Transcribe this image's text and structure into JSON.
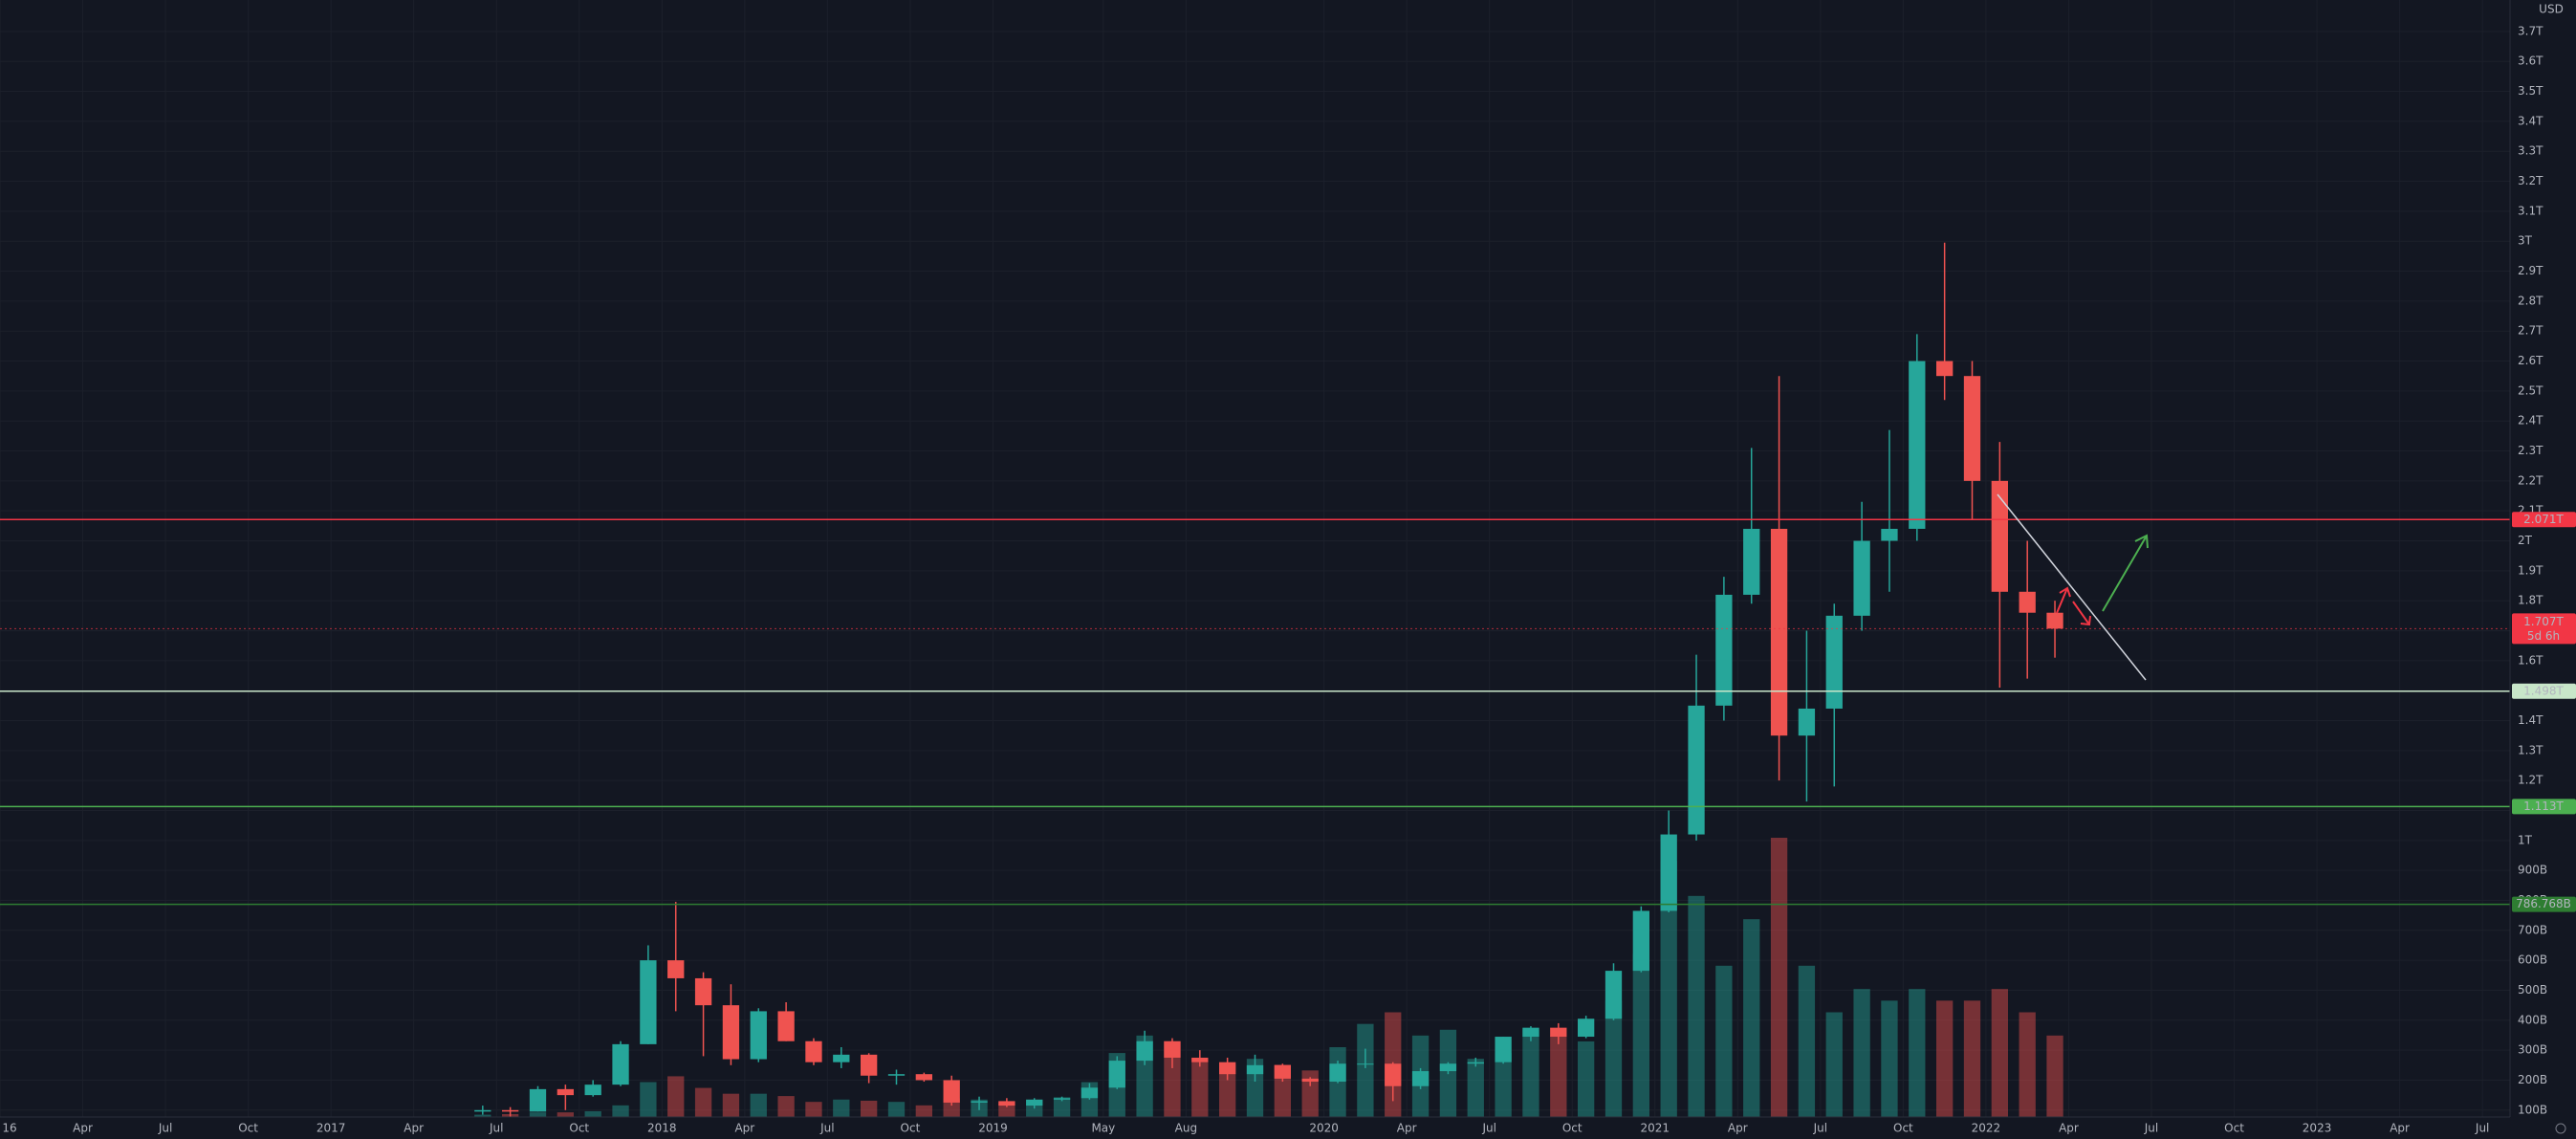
{
  "chart_data": {
    "type": "candlestick",
    "currency": "USD",
    "x": [
      "2017-06",
      "2017-07",
      "2017-08",
      "2017-09",
      "2017-10",
      "2017-11",
      "2017-12",
      "2018-01",
      "2018-02",
      "2018-03",
      "2018-04",
      "2018-05",
      "2018-06",
      "2018-07",
      "2018-08",
      "2018-09",
      "2018-10",
      "2018-11",
      "2018-12",
      "2019-01",
      "2019-02",
      "2019-03",
      "2019-04",
      "2019-05",
      "2019-06",
      "2019-07",
      "2019-08",
      "2019-09",
      "2019-10",
      "2019-11",
      "2019-12",
      "2020-01",
      "2020-02",
      "2020-03",
      "2020-04",
      "2020-05",
      "2020-06",
      "2020-07",
      "2020-08",
      "2020-09",
      "2020-10",
      "2020-11",
      "2020-12",
      "2021-01",
      "2021-02",
      "2021-03",
      "2021-04",
      "2021-05",
      "2021-06",
      "2021-07",
      "2021-08",
      "2021-09",
      "2021-10",
      "2021-11",
      "2021-12",
      "2022-01",
      "2022-02",
      "2022-03"
    ],
    "open": [
      95,
      100,
      95,
      170,
      150,
      185,
      320,
      600,
      540,
      450,
      270,
      430,
      330,
      260,
      285,
      215,
      220,
      200,
      125,
      130,
      115,
      135,
      140,
      175,
      265,
      330,
      275,
      260,
      220,
      250,
      205,
      195,
      255,
      255,
      180,
      230,
      255,
      260,
      345,
      375,
      345,
      405,
      565,
      765,
      1020,
      1450,
      1820,
      2040,
      1350,
      1440,
      1750,
      2000,
      2040,
      2600,
      2550,
      2200,
      1830,
      1760
    ],
    "high": [
      115,
      110,
      180,
      185,
      200,
      330,
      650,
      795,
      560,
      520,
      440,
      460,
      340,
      310,
      290,
      235,
      225,
      215,
      145,
      140,
      140,
      145,
      190,
      280,
      365,
      340,
      300,
      275,
      285,
      255,
      210,
      265,
      305,
      260,
      240,
      260,
      275,
      345,
      380,
      390,
      415,
      590,
      780,
      1100,
      1620,
      1880,
      2310,
      2550,
      1700,
      1790,
      2130,
      2370,
      2690,
      2995,
      2600,
      2330,
      2000,
      1800
    ],
    "low": [
      85,
      75,
      95,
      100,
      145,
      180,
      320,
      430,
      280,
      250,
      260,
      330,
      250,
      240,
      190,
      185,
      195,
      115,
      100,
      110,
      105,
      130,
      135,
      170,
      250,
      240,
      245,
      200,
      195,
      195,
      180,
      190,
      240,
      130,
      170,
      220,
      245,
      255,
      330,
      320,
      340,
      400,
      560,
      760,
      1000,
      1400,
      1790,
      1200,
      1130,
      1180,
      1700,
      1830,
      2000,
      2470,
      2070,
      1510,
      1540,
      1610
    ],
    "close": [
      100,
      95,
      170,
      150,
      185,
      320,
      600,
      540,
      450,
      270,
      430,
      330,
      260,
      285,
      215,
      220,
      200,
      125,
      130,
      115,
      135,
      140,
      175,
      265,
      330,
      275,
      260,
      220,
      250,
      205,
      195,
      255,
      255,
      180,
      230,
      255,
      260,
      345,
      375,
      345,
      405,
      565,
      765,
      1020,
      1450,
      1820,
      2040,
      1350,
      1440,
      1750,
      2000,
      2040,
      2600,
      2550,
      2200,
      1830,
      1760,
      1707
    ],
    "volume": [
      20,
      25,
      40,
      40,
      50,
      100,
      300,
      350,
      250,
      200,
      200,
      180,
      130,
      150,
      140,
      130,
      100,
      160,
      150,
      120,
      150,
      170,
      300,
      550,
      700,
      650,
      500,
      450,
      500,
      450,
      400,
      600,
      800,
      900,
      700,
      750,
      500,
      550,
      750,
      700,
      650,
      1000,
      1400,
      2200,
      1900,
      1300,
      1700,
      2400,
      1300,
      900,
      1100,
      1000,
      1100,
      1000,
      1000,
      1100,
      900,
      700
    ],
    "up_color": "#26a69a",
    "down_color": "#ef5350",
    "xlim": [
      "2016-01",
      "2023-08"
    ],
    "ylim": [
      77,
      3805
    ],
    "grid": true,
    "xticks": [
      {
        "value": "2016-01",
        "label": "16"
      },
      {
        "value": "2016-04",
        "label": "Apr"
      },
      {
        "value": "2016-07",
        "label": "Jul"
      },
      {
        "value": "2016-10",
        "label": "Oct"
      },
      {
        "value": "2017-01",
        "label": "2017"
      },
      {
        "value": "2017-04",
        "label": "Apr"
      },
      {
        "value": "2017-07",
        "label": "Jul"
      },
      {
        "value": "2017-10",
        "label": "Oct"
      },
      {
        "value": "2018-01",
        "label": "2018"
      },
      {
        "value": "2018-04",
        "label": "Apr"
      },
      {
        "value": "2018-07",
        "label": "Jul"
      },
      {
        "value": "2018-10",
        "label": "Oct"
      },
      {
        "value": "2019-01",
        "label": "2019"
      },
      {
        "value": "2019-05",
        "label": "May"
      },
      {
        "value": "2019-08",
        "label": "Aug"
      },
      {
        "value": "2020-01",
        "label": "2020"
      },
      {
        "value": "2020-04",
        "label": "Apr"
      },
      {
        "value": "2020-07",
        "label": "Jul"
      },
      {
        "value": "2020-10",
        "label": "Oct"
      },
      {
        "value": "2021-01",
        "label": "2021"
      },
      {
        "value": "2021-04",
        "label": "Apr"
      },
      {
        "value": "2021-07",
        "label": "Jul"
      },
      {
        "value": "2021-10",
        "label": "Oct"
      },
      {
        "value": "2022-01",
        "label": "2022"
      },
      {
        "value": "2022-04",
        "label": "Apr"
      },
      {
        "value": "2022-07",
        "label": "Jul"
      },
      {
        "value": "2022-10",
        "label": "Oct"
      },
      {
        "value": "2023-01",
        "label": "2023"
      },
      {
        "value": "2023-04",
        "label": "Apr"
      },
      {
        "value": "2023-07",
        "label": "Jul"
      }
    ],
    "yticks": [
      {
        "value": 100,
        "label": "100B"
      },
      {
        "value": 200,
        "label": "200B"
      },
      {
        "value": 300,
        "label": "300B"
      },
      {
        "value": 400,
        "label": "400B"
      },
      {
        "value": 500,
        "label": "500B"
      },
      {
        "value": 600,
        "label": "600B"
      },
      {
        "value": 700,
        "label": "700B"
      },
      {
        "value": 800,
        "label": "800B"
      },
      {
        "value": 900,
        "label": "900B"
      },
      {
        "value": 1000,
        "label": "1T"
      },
      {
        "value": 1100,
        "label": "1.1T"
      },
      {
        "value": 1200,
        "label": "1.2T"
      },
      {
        "value": 1300,
        "label": "1.3T"
      },
      {
        "value": 1400,
        "label": "1.4T"
      },
      {
        "value": 1500,
        "label": "1.5T"
      },
      {
        "value": 1600,
        "label": "1.6T"
      },
      {
        "value": 1700,
        "label": "1.7T"
      },
      {
        "value": 1800,
        "label": "1.8T"
      },
      {
        "value": 1900,
        "label": "1.9T"
      },
      {
        "value": 2000,
        "label": "2T"
      },
      {
        "value": 2100,
        "label": "2.1T"
      },
      {
        "value": 2200,
        "label": "2.2T"
      },
      {
        "value": 2300,
        "label": "2.3T"
      },
      {
        "value": 2400,
        "label": "2.4T"
      },
      {
        "value": 2500,
        "label": "2.5T"
      },
      {
        "value": 2600,
        "label": "2.6T"
      },
      {
        "value": 2700,
        "label": "2.7T"
      },
      {
        "value": 2800,
        "label": "2.8T"
      },
      {
        "value": 2900,
        "label": "2.9T"
      },
      {
        "value": 3000,
        "label": "3T"
      },
      {
        "value": 3100,
        "label": "3.1T"
      },
      {
        "value": 3200,
        "label": "3.2T"
      },
      {
        "value": 3300,
        "label": "3.3T"
      },
      {
        "value": 3400,
        "label": "3.4T"
      },
      {
        "value": 3500,
        "label": "3.5T"
      },
      {
        "value": 3600,
        "label": "3.6T"
      },
      {
        "value": 3700,
        "label": "3.7T"
      }
    ],
    "levels": [
      {
        "value": 2071,
        "label": "2.071T",
        "color": "#f23645",
        "text_color": "#ffffff"
      },
      {
        "value": 1498,
        "label": "1.498T",
        "color": "#c8e6c9",
        "text_color": "#131722"
      },
      {
        "value": 1113,
        "label": "1.113T",
        "color": "#4caf50",
        "text_color": "#ffffff"
      },
      {
        "value": 786.768,
        "label": "786.768B",
        "color": "#2e7d32",
        "text_color": "#ffffff"
      }
    ],
    "last_price": {
      "value": 1707,
      "label": "1.707T",
      "countdown": "5d 6h",
      "color": "#f23645"
    }
  }
}
